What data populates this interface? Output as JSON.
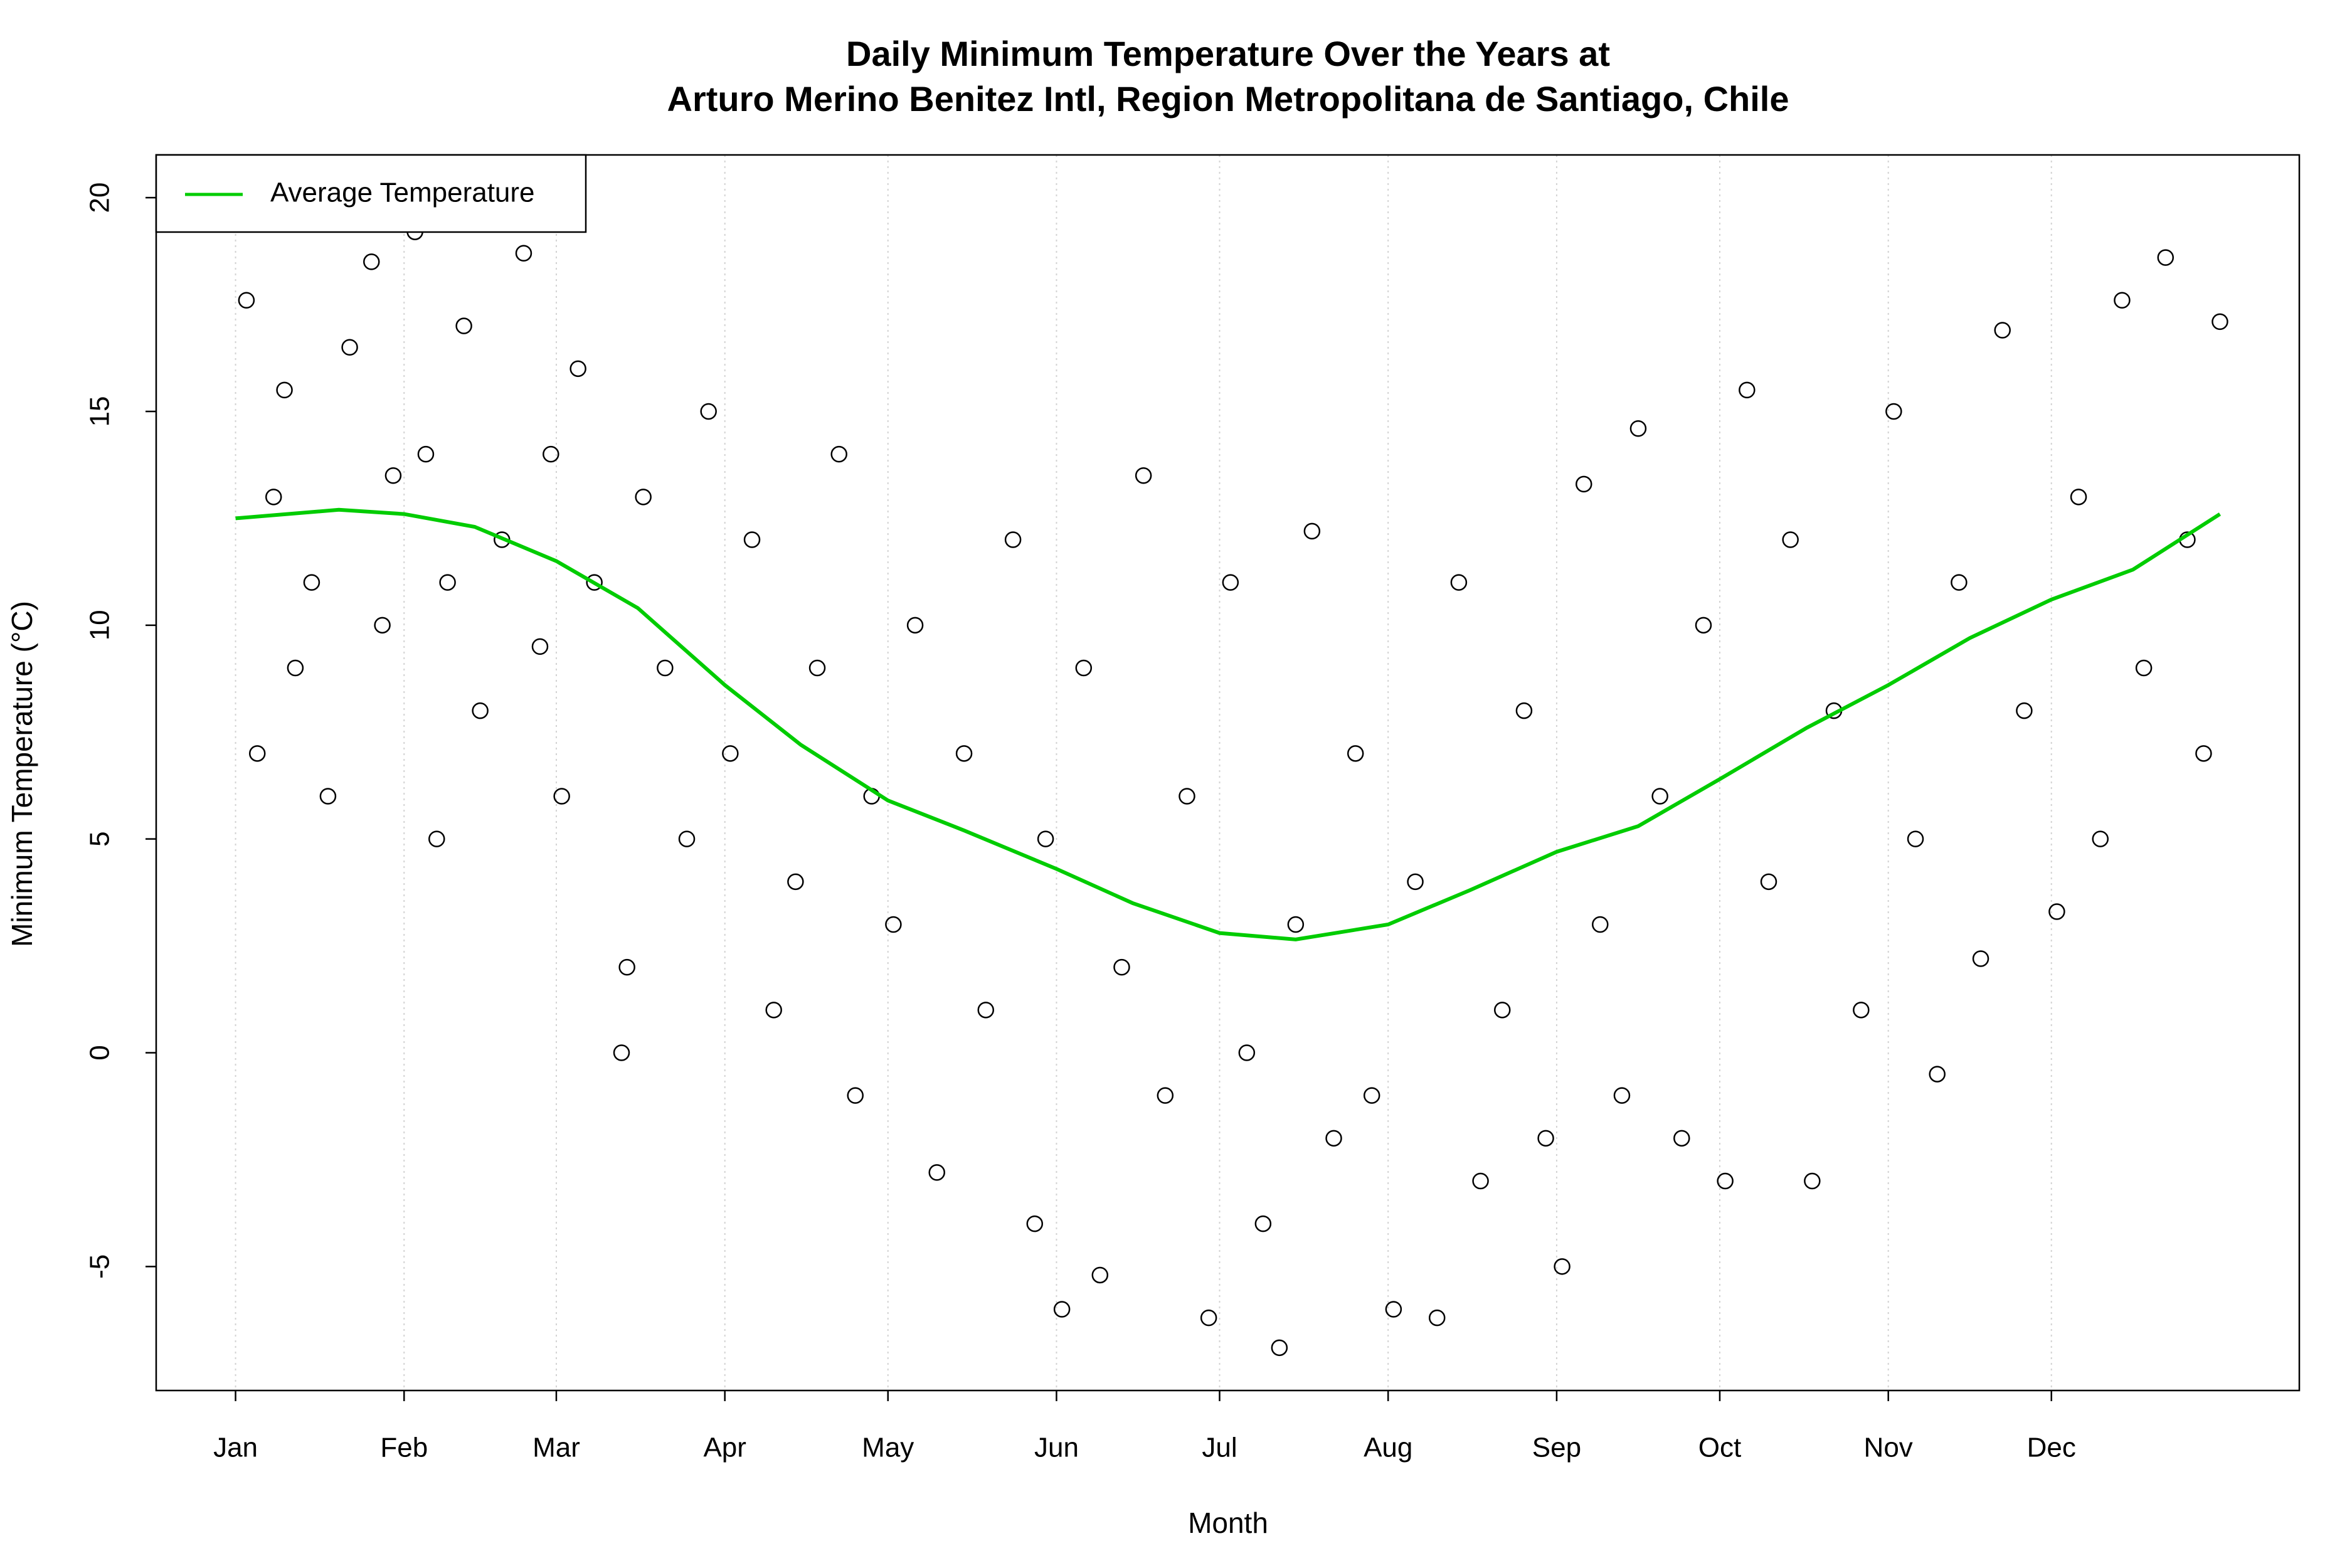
{
  "chart_data": {
    "type": "scatter",
    "title": "Daily Minimum Temperature Over the Years at",
    "subtitle": "Arturo Merino Benitez Intl, Region Metropolitana de Santiago, Chile",
    "x_label": "Month",
    "y_label": "Minimum Temperature (°C)",
    "xlim": [
      -13.6,
      380.6
    ],
    "ylim": [
      -7.9,
      21.0
    ],
    "xticks": [
      {
        "value": 1,
        "label": "Jan"
      },
      {
        "value": 32,
        "label": "Feb"
      },
      {
        "value": 60,
        "label": "Mar"
      },
      {
        "value": 91,
        "label": "Apr"
      },
      {
        "value": 121,
        "label": "May"
      },
      {
        "value": 152,
        "label": "Jun"
      },
      {
        "value": 182,
        "label": "Jul"
      },
      {
        "value": 213,
        "label": "Aug"
      },
      {
        "value": 244,
        "label": "Sep"
      },
      {
        "value": 274,
        "label": "Oct"
      },
      {
        "value": 305,
        "label": "Nov"
      },
      {
        "value": 335,
        "label": "Dec"
      }
    ],
    "yticks": [
      -5,
      0,
      5,
      10,
      15,
      20
    ],
    "grid": "x",
    "legend": "topleft",
    "points": {
      "color": "#000000",
      "x": [
        3,
        5,
        8,
        10,
        12,
        15,
        18,
        22,
        26,
        28,
        30,
        34,
        36,
        38,
        40,
        43,
        46,
        50,
        54,
        57,
        59,
        61,
        64,
        67,
        72,
        73,
        76,
        80,
        84,
        88,
        92,
        96,
        100,
        104,
        108,
        112,
        115,
        118,
        122,
        126,
        130,
        135,
        139,
        144,
        148,
        150,
        153,
        157,
        160,
        164,
        168,
        172,
        176,
        180,
        184,
        187,
        190,
        193,
        196,
        199,
        203,
        207,
        210,
        214,
        218,
        222,
        226,
        230,
        234,
        238,
        242,
        245,
        249,
        252,
        256,
        259,
        263,
        267,
        271,
        275,
        279,
        283,
        287,
        291,
        295,
        300,
        306,
        310,
        314,
        318,
        322,
        326,
        330,
        336,
        340,
        344,
        348,
        352,
        356,
        360,
        363,
        366
      ],
      "y": [
        17.6,
        7,
        13,
        15.5,
        9,
        11,
        6,
        16.5,
        18.5,
        10,
        13.5,
        19.2,
        14,
        5,
        11,
        17,
        8,
        12,
        18.7,
        9.5,
        14,
        6,
        16,
        11,
        0,
        2,
        13,
        9,
        5,
        15,
        7,
        12,
        1,
        4,
        9,
        14,
        -1,
        6,
        3,
        10,
        -2.8,
        7,
        1,
        12,
        -4,
        5,
        -6,
        9,
        -5.2,
        2,
        13.5,
        -1,
        6,
        -6.2,
        11,
        0,
        -4,
        -6.9,
        3,
        12.2,
        -2,
        7,
        -1,
        -6,
        4,
        -6.2,
        11,
        -3,
        1,
        8,
        -2,
        -5,
        13.3,
        3,
        -1,
        14.6,
        6,
        -2,
        10,
        -3,
        15.5,
        4,
        12,
        -3,
        8,
        1,
        15,
        5,
        -0.5,
        11,
        2.2,
        16.9,
        8,
        3.3,
        13,
        5,
        17.6,
        9,
        18.6,
        12,
        7,
        17.1
      ]
    },
    "average": {
      "name": "Average Temperature",
      "color": "#00cc00",
      "x": [
        1,
        20,
        32,
        45,
        60,
        75,
        91,
        105,
        121,
        135,
        152,
        166,
        182,
        196,
        213,
        228,
        244,
        259,
        274,
        290,
        305,
        320,
        335,
        350,
        366
      ],
      "y": [
        12.5,
        12.7,
        12.6,
        12.3,
        11.5,
        10.4,
        8.6,
        7.2,
        5.9,
        5.2,
        4.3,
        3.5,
        2.8,
        2.65,
        3.0,
        3.8,
        4.7,
        5.3,
        6.4,
        7.6,
        8.6,
        9.7,
        10.6,
        11.3,
        12.6
      ]
    }
  }
}
